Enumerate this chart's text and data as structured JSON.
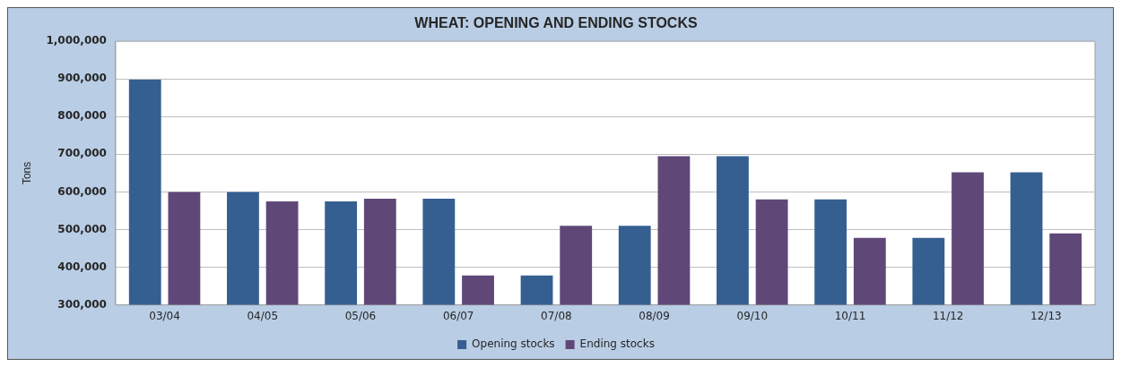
{
  "chart_data": {
    "type": "bar",
    "title": "WHEAT: OPENING AND ENDING STOCKS",
    "ylabel": "Tons",
    "categories": [
      "03/04",
      "04/05",
      "05/06",
      "06/07",
      "07/08",
      "08/09",
      "09/10",
      "10/11",
      "11/12",
      "12/13"
    ],
    "series": [
      {
        "name": "Opening stocks",
        "color": "#355f91",
        "values": [
          898000,
          600000,
          575000,
          582000,
          378000,
          510000,
          695000,
          580000,
          478000,
          652000
        ]
      },
      {
        "name": "Ending stocks",
        "color": "#5f4878",
        "values": [
          600000,
          575000,
          582000,
          378000,
          510000,
          695000,
          580000,
          478000,
          652000,
          490000
        ]
      }
    ],
    "ylim": [
      300000,
      1000000
    ],
    "yticks": [
      {
        "value": 300000,
        "label": "300,000"
      },
      {
        "value": 400000,
        "label": "400,000"
      },
      {
        "value": 500000,
        "label": "500,000"
      },
      {
        "value": 600000,
        "label": "600,000"
      },
      {
        "value": 700000,
        "label": "700,000"
      },
      {
        "value": 800000,
        "label": "800,000"
      },
      {
        "value": 900000,
        "label": "900,000"
      },
      {
        "value": 1000000,
        "label": "1,000,000"
      }
    ],
    "grid": "y",
    "legend": "bottom"
  }
}
